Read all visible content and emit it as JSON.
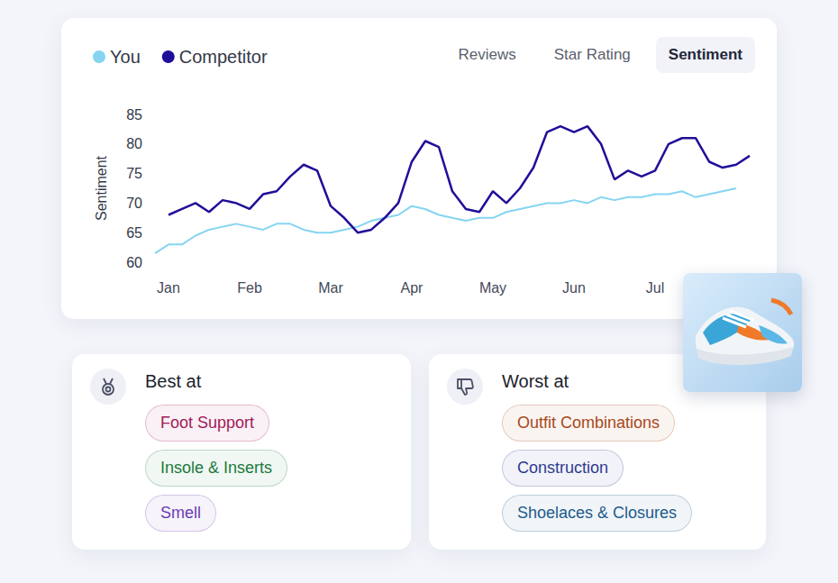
{
  "chart_data": {
    "type": "line",
    "ylabel": "Sentiment",
    "categories": [
      null,
      "Jan",
      null,
      null,
      null,
      null,
      null,
      "Feb",
      null,
      null,
      null,
      null,
      null,
      "Mar",
      null,
      null,
      null,
      null,
      null,
      "Apr",
      null,
      null,
      null,
      null,
      null,
      "May",
      null,
      null,
      null,
      null,
      null,
      "Jun",
      null,
      null,
      null,
      null,
      null,
      "Jul",
      null,
      null,
      null,
      null,
      null,
      null,
      null
    ],
    "series": [
      {
        "name": "You",
        "color": "#85d5f1",
        "values": [
          61.5,
          63,
          63,
          64.5,
          65.5,
          66,
          66.5,
          66,
          65.5,
          66.5,
          66.5,
          65.5,
          65,
          65,
          65.5,
          66,
          67,
          67.5,
          68,
          69.5,
          69,
          68,
          67.5,
          67,
          67.5,
          67.5,
          68.5,
          69,
          69.5,
          70,
          70,
          70.5,
          70,
          71,
          70.5,
          71,
          71,
          71.5,
          71.5,
          72,
          71,
          71.5,
          72,
          72.5,
          null
        ]
      },
      {
        "name": "Competitor",
        "color": "#200f99",
        "values": [
          null,
          68,
          69,
          70,
          68.5,
          70.5,
          70,
          69,
          71.5,
          72,
          74.5,
          76.5,
          75.5,
          69.5,
          67.5,
          65,
          65.5,
          67.5,
          70,
          77,
          80.5,
          79.5,
          72,
          69,
          68.5,
          72,
          70,
          72.5,
          76,
          82,
          83,
          82,
          83,
          80,
          74,
          75.5,
          74.5,
          75.5,
          80,
          81,
          81,
          77,
          76,
          76.5,
          78
        ]
      }
    ],
    "ylim": [
      60,
      85
    ],
    "yticks": [
      60,
      65,
      70,
      75,
      80,
      85
    ],
    "grid": false,
    "legend": "top-left"
  },
  "tabs": {
    "items": [
      "Reviews",
      "Star Rating",
      "Sentiment"
    ],
    "selected": "Sentiment"
  },
  "panels": [
    {
      "title": "Best at",
      "tags": [
        {
          "label": "Foot Support",
          "color": "#a3195b"
        },
        {
          "label": "Insole & Inserts",
          "color": "#1b7a3e"
        },
        {
          "label": "Smell",
          "color": "#6b3cb5"
        }
      ]
    },
    {
      "title": "Worst at",
      "tags": [
        {
          "label": "Outfit Combinations",
          "color": "#a8481a"
        },
        {
          "label": "Construction",
          "color": "#2e3b8e"
        },
        {
          "label": "Shoelaces & Closures",
          "color": "#1d5b8c"
        }
      ]
    }
  ]
}
